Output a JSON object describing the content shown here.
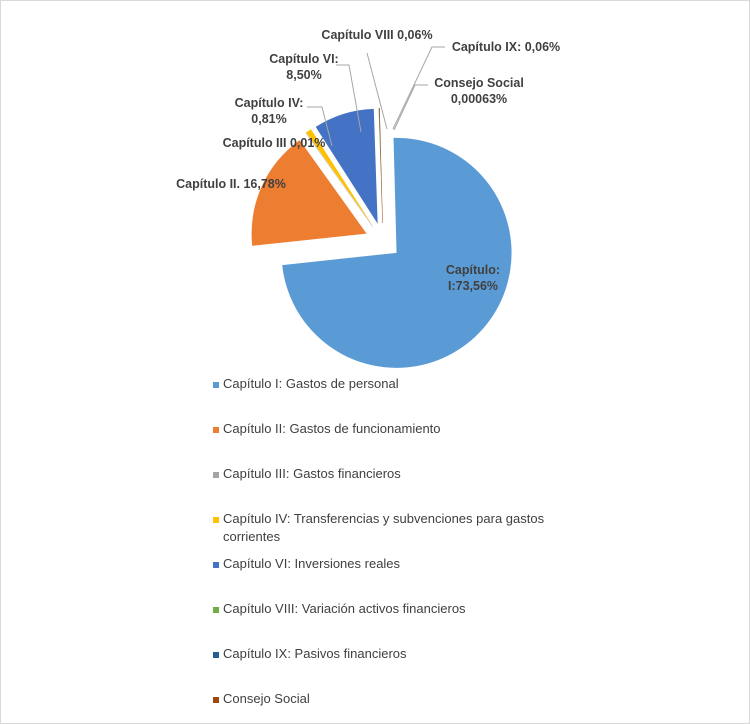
{
  "chart_data": {
    "type": "pie",
    "exploded": true,
    "legend_position": "bottom",
    "slices": [
      {
        "legend": "Capítulo I: Gastos de personal",
        "label": "Capítulo: I:73,56%",
        "value": 73.56,
        "color": "#5b9bd5"
      },
      {
        "legend": "Capítulo II: Gastos de funcionamiento",
        "label": "Capítulo II. 16,78%",
        "value": 16.78,
        "color": "#ed7d31"
      },
      {
        "legend": "Capítulo III: Gastos financieros",
        "label": "Capítulo III 0,01%",
        "value": 0.01,
        "color": "#a5a5a5"
      },
      {
        "legend": "Capítulo IV: Transferencias y subvenciones para gastos corrientes",
        "label": "Capítulo IV: 0,81%",
        "value": 0.81,
        "color": "#ffc000"
      },
      {
        "legend": "Capítulo VI: Inversiones reales",
        "label": "Capítulo VI: 8,50%",
        "value": 8.5,
        "color": "#4472c4"
      },
      {
        "legend": "Capítulo VIII: Variación activos financieros",
        "label": "Capítulo VIII 0,06%",
        "value": 0.06,
        "color": "#70ad47"
      },
      {
        "legend": "Capítulo IX: Pasivos financieros",
        "label": "Capítulo IX: 0,06%",
        "value": 0.06,
        "color": "#255e91"
      },
      {
        "legend": "Consejo Social",
        "label": "Consejo Social 0,00063%",
        "value": 0.00063,
        "color": "#9e480e"
      }
    ]
  }
}
